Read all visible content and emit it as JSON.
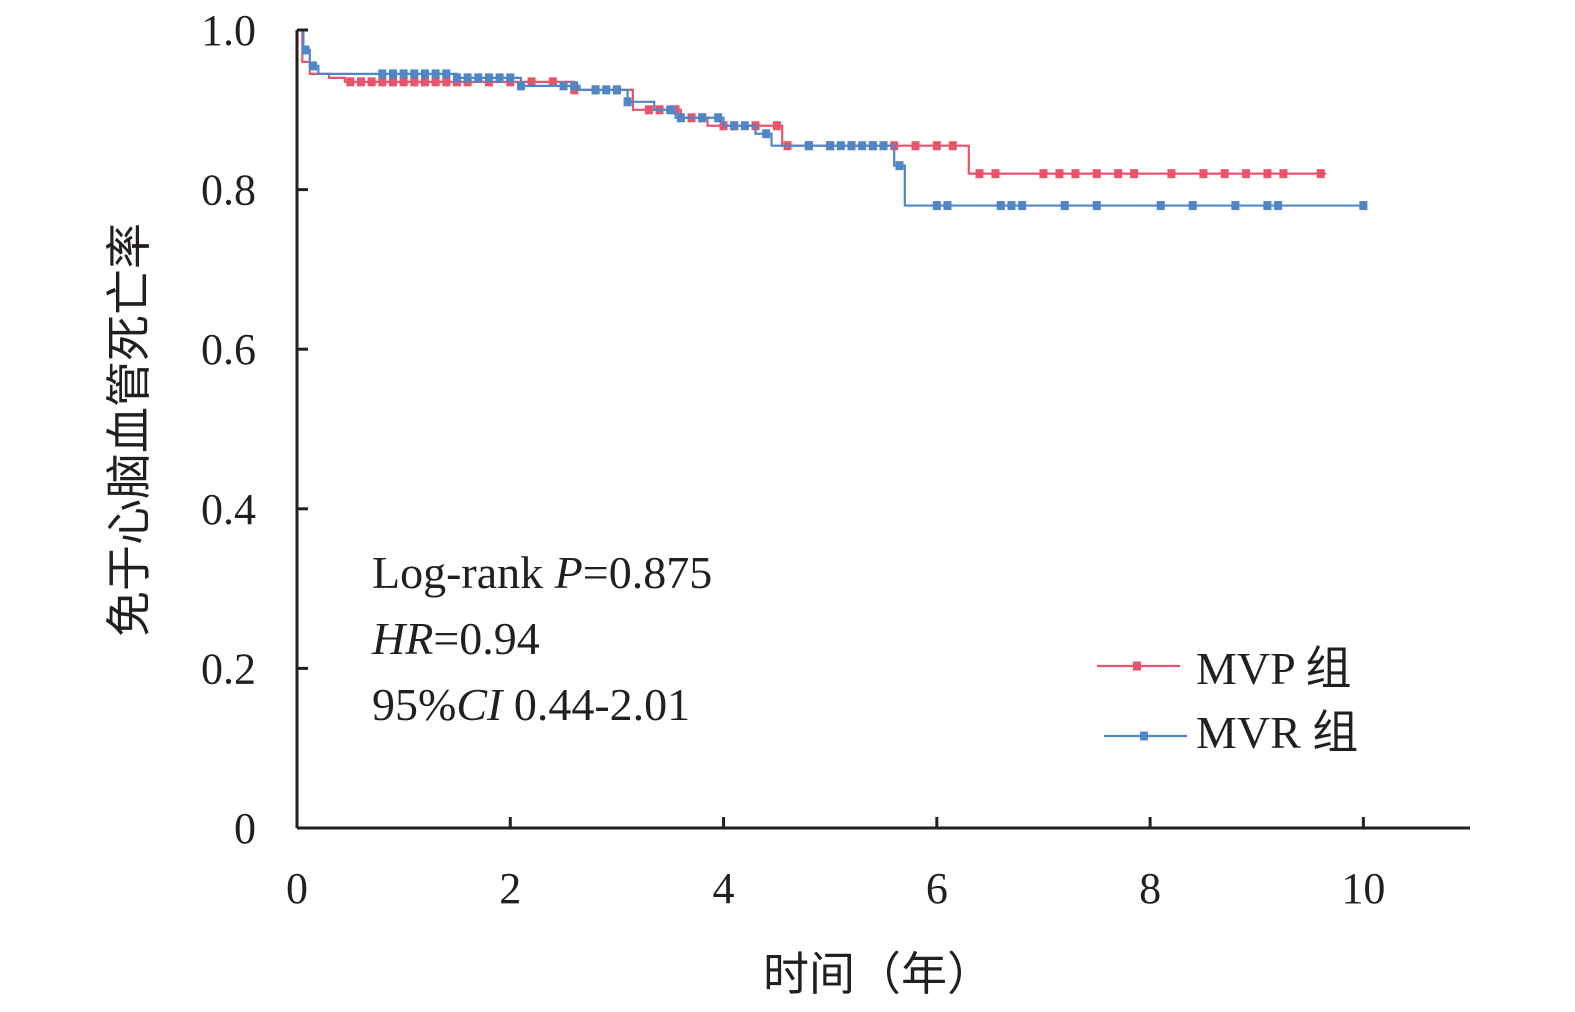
{
  "chart_data": {
    "type": "line",
    "subtype": "kaplan-meier",
    "xlabel": "时间（年）",
    "ylabel": "免于心脑血管死亡率",
    "xlim": [
      0,
      11
    ],
    "ylim": [
      0,
      1.0
    ],
    "xticks": [
      0,
      2,
      4,
      6,
      8,
      10
    ],
    "xtick_labels": [
      "0",
      "2",
      "4",
      "6",
      "8",
      "10"
    ],
    "yticks": [
      0,
      0.2,
      0.4,
      0.6,
      0.8,
      1.0
    ],
    "ytick_labels": [
      "0",
      "0.2",
      "0.4",
      "0.6",
      "0.8",
      "1.0"
    ],
    "grid": false,
    "legend_position": "bottom-right",
    "annotations": [
      {
        "parts": [
          {
            "text": "Log-rank ",
            "italic": false
          },
          {
            "text": "P",
            "italic": true
          },
          {
            "text": "=0.875",
            "italic": false
          }
        ]
      },
      {
        "parts": [
          {
            "text": "HR",
            "italic": true
          },
          {
            "text": "=0.94",
            "italic": false
          }
        ]
      },
      {
        "parts": [
          {
            "text": "95%",
            "italic": false
          },
          {
            "text": "CI",
            "italic": true
          },
          {
            "text": " 0.44-2.01",
            "italic": false
          }
        ]
      }
    ],
    "series": [
      {
        "name": "MVP 组",
        "color": "#e8546c",
        "steps": [
          [
            0,
            1.0
          ],
          [
            0.05,
            0.96
          ],
          [
            0.12,
            0.945
          ],
          [
            0.3,
            0.94
          ],
          [
            0.45,
            0.935
          ],
          [
            1.45,
            0.935
          ],
          [
            2.6,
            0.925
          ],
          [
            3.15,
            0.9
          ],
          [
            3.6,
            0.89
          ],
          [
            3.85,
            0.88
          ],
          [
            4.55,
            0.855
          ],
          [
            6.3,
            0.82
          ],
          [
            9.65,
            0.82
          ]
        ],
        "censor_times": [
          0.5,
          0.6,
          0.7,
          0.8,
          0.9,
          1.0,
          1.1,
          1.2,
          1.3,
          1.4,
          1.5,
          1.6,
          1.8,
          2.0,
          2.2,
          2.4,
          2.6,
          2.8,
          3.0,
          3.3,
          3.4,
          3.55,
          3.7,
          3.8,
          4.0,
          4.1,
          4.3,
          4.5,
          4.6,
          4.8,
          5.0,
          5.2,
          5.4,
          5.6,
          5.8,
          6.0,
          6.15,
          6.4,
          6.55,
          7.0,
          7.15,
          7.3,
          7.5,
          7.7,
          7.85,
          8.2,
          8.5,
          8.7,
          8.9,
          9.1,
          9.25,
          9.6
        ]
      },
      {
        "name": "MVR 组",
        "color": "#4f86c6",
        "steps": [
          [
            0,
            1.0
          ],
          [
            0.06,
            0.975
          ],
          [
            0.12,
            0.955
          ],
          [
            0.2,
            0.945
          ],
          [
            1.5,
            0.94
          ],
          [
            2.1,
            0.93
          ],
          [
            2.65,
            0.925
          ],
          [
            3.1,
            0.91
          ],
          [
            3.35,
            0.9
          ],
          [
            3.55,
            0.89
          ],
          [
            4.0,
            0.88
          ],
          [
            4.3,
            0.87
          ],
          [
            4.45,
            0.855
          ],
          [
            5.6,
            0.83
          ],
          [
            5.7,
            0.78
          ],
          [
            10.0,
            0.78
          ]
        ],
        "censor_times": [
          0.08,
          0.15,
          0.8,
          0.9,
          1.0,
          1.1,
          1.2,
          1.3,
          1.4,
          1.5,
          1.6,
          1.7,
          1.8,
          1.9,
          2.0,
          2.1,
          2.5,
          2.6,
          2.8,
          2.9,
          3.0,
          3.1,
          3.5,
          3.6,
          3.8,
          3.95,
          4.1,
          4.2,
          4.4,
          4.8,
          5.0,
          5.1,
          5.2,
          5.3,
          5.4,
          5.5,
          5.65,
          6.0,
          6.1,
          6.6,
          6.7,
          6.8,
          7.2,
          7.5,
          8.1,
          8.4,
          8.8,
          9.1,
          9.2,
          10.0
        ]
      }
    ]
  }
}
